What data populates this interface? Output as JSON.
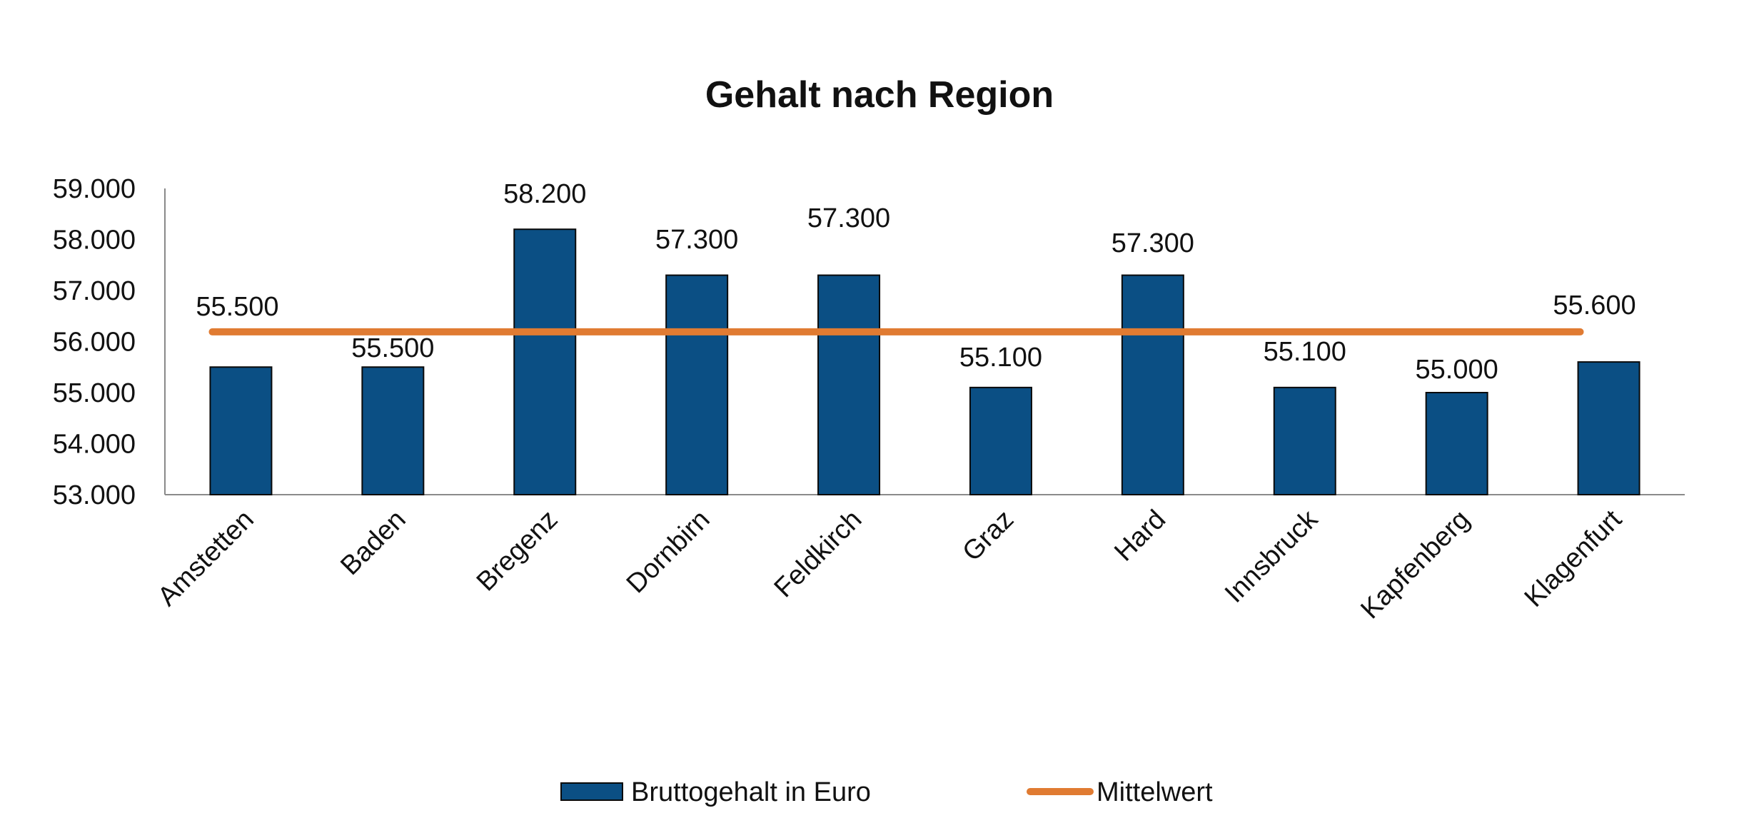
{
  "chart_data": {
    "type": "bar",
    "title": "Gehalt nach Region",
    "xlabel": "",
    "ylabel": "",
    "ylim": [
      53000,
      59000
    ],
    "yticks": [
      53000,
      54000,
      55000,
      56000,
      57000,
      58000,
      59000
    ],
    "ytick_labels": [
      "53.000",
      "54.000",
      "55.000",
      "56.000",
      "57.000",
      "58.000",
      "59.000"
    ],
    "categories": [
      "Amstetten",
      "Baden",
      "Bregenz",
      "Dornbirn",
      "Feldkirch",
      "Graz",
      "Hard",
      "Innsbruck",
      "Kapfenberg",
      "Klagenfurt"
    ],
    "series": [
      {
        "name": "Bruttogehalt in Euro",
        "type": "bar",
        "color": "#0b4f84",
        "values": [
          55500,
          55500,
          58200,
          57300,
          57300,
          55100,
          57300,
          55100,
          55000,
          55600
        ],
        "data_labels": [
          "55.500",
          "55.500",
          "58.200",
          "57.300",
          "57.300",
          "55.100",
          "57.300",
          "55.100",
          "55.000",
          "55.600"
        ]
      },
      {
        "name": "Mittelwert",
        "type": "line",
        "color": "#e07b32",
        "values": [
          56190,
          56190,
          56190,
          56190,
          56190,
          56190,
          56190,
          56190,
          56190,
          56190
        ]
      }
    ],
    "grid": false,
    "legend_position": "bottom"
  }
}
